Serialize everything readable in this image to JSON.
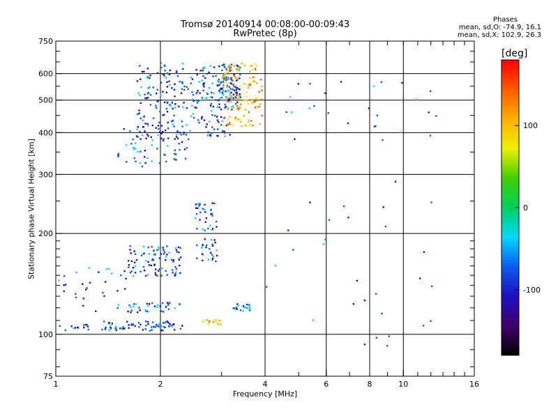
{
  "header": {
    "title_line1": "Tromsø 20140914 00:08:00-00:09:43",
    "title_line2": "RwPretec (8p)",
    "phase_title": "Phases",
    "phase_line1": "mean, sd,O: -74.9, 16.1",
    "phase_line2": "mean, sd,X: 102.9, 26.3"
  },
  "colorbar": {
    "label": "[deg]",
    "ticks": [
      "100",
      "0",
      "-100"
    ],
    "tick_values": [
      100,
      0,
      -100
    ],
    "range": [
      -180,
      180
    ],
    "stops": [
      "#000000",
      "#40006a",
      "#1f10c0",
      "#0a5cf0",
      "#00d8ff",
      "#00d060",
      "#40d000",
      "#f0f000",
      "#ffb000",
      "#ff5a00",
      "#ff0000"
    ]
  },
  "chart_data": {
    "type": "scatter",
    "title": "Tromsø 20140914 00:08:00-00:09:43",
    "subtitle": "RwPretec (8p)",
    "xlabel": "Frequency [MHz]",
    "ylabel": "Stationary phase Virtual Height [km]",
    "x_scale": "log",
    "y_scale": "log",
    "xlim": [
      1,
      16
    ],
    "ylim": [
      75,
      750
    ],
    "x_ticks": [
      1,
      2,
      4,
      6,
      8,
      10,
      16
    ],
    "x_tick_labels": [
      "1",
      "2",
      "4",
      "6",
      "8",
      "10",
      "16"
    ],
    "y_ticks": [
      75,
      100,
      200,
      300,
      400,
      500,
      600,
      750
    ],
    "y_tick_labels": [
      "75",
      "100",
      "200",
      "300",
      "400",
      "500",
      "600",
      "750"
    ],
    "grid": true,
    "color_by": "phase (deg)",
    "traces": [
      {
        "component": "O",
        "x_range": [
          1.5,
          2.4
        ],
        "y_range": [
          318,
          420
        ],
        "points": 60
      },
      {
        "component": "O",
        "x_range": [
          1.7,
          3.2
        ],
        "y_range": [
          390,
          650
        ],
        "points": 260
      },
      {
        "component": "O",
        "x_range": [
          2.9,
          3.4
        ],
        "y_range": [
          470,
          650
        ],
        "points": 90
      },
      {
        "component": "X",
        "x_range": [
          3.0,
          3.9
        ],
        "y_range": [
          420,
          650
        ],
        "points": 130
      },
      {
        "component": "O",
        "x_range": [
          1.6,
          2.3
        ],
        "y_range": [
          150,
          185
        ],
        "points": 90
      },
      {
        "component": "O",
        "x_range": [
          1.35,
          2.3
        ],
        "y_range": [
          103,
          110
        ],
        "points": 70
      },
      {
        "component": "O",
        "x_range": [
          1.6,
          2.3
        ],
        "y_range": [
          117,
          125
        ],
        "points": 35
      },
      {
        "component": "O",
        "x_range": [
          2.5,
          2.9
        ],
        "y_range": [
          165,
          250
        ],
        "points": 60
      },
      {
        "component": "O",
        "x_range": [
          3.2,
          3.6
        ],
        "y_range": [
          118,
          124
        ],
        "points": 20
      },
      {
        "component": "X",
        "x_range": [
          2.6,
          3.0
        ],
        "y_range": [
          107,
          111
        ],
        "points": 18
      },
      {
        "component": "O",
        "x_range": [
          1.0,
          1.25
        ],
        "y_range": [
          103,
          108
        ],
        "points": 14
      },
      {
        "component": "O",
        "x_range": [
          1.0,
          1.6
        ],
        "y_range": [
          115,
          160
        ],
        "points": 30
      },
      {
        "component": "O",
        "x_range": [
          4.0,
          12.5
        ],
        "y_range": [
          90,
          600
        ],
        "points": 55
      }
    ]
  }
}
